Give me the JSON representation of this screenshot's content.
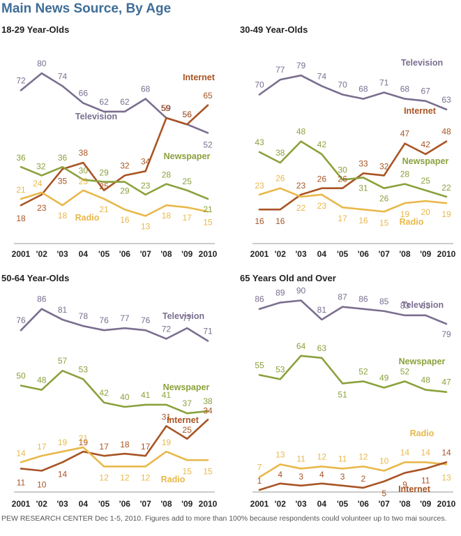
{
  "title": "Main News Source, By Age",
  "source_note": "PEW RESEARCH CENTER Dec 1-5, 2010. Figures add to more than 100% because respondents could volunteer up to two mai sources.",
  "colors": {
    "Television": "#7a6e8f",
    "Internet": "#a85424",
    "Newspaper": "#8aa13c",
    "Radio": "#e8b84a",
    "title": "#3f6d96"
  },
  "chart_data": [
    {
      "type": "line",
      "title": "18-29 Year-Olds",
      "x": [
        "2001",
        "'02",
        "'03",
        "04",
        "'05",
        "'06",
        "'07",
        "'08",
        "'09",
        "2010"
      ],
      "ylim": [
        0,
        100
      ],
      "series": [
        {
          "name": "Television",
          "values": [
            72,
            80,
            74,
            66,
            62,
            62,
            68,
            59,
            56,
            52
          ]
        },
        {
          "name": "Internet",
          "values": [
            18,
            23,
            35,
            38,
            25,
            32,
            34,
            59,
            56,
            65
          ]
        },
        {
          "name": "Newspaper",
          "values": [
            36,
            32,
            36,
            30,
            29,
            29,
            23,
            28,
            25,
            21
          ]
        },
        {
          "name": "Radio",
          "values": [
            21,
            24,
            18,
            25,
            21,
            16,
            13,
            18,
            17,
            15
          ]
        }
      ]
    },
    {
      "type": "line",
      "title": "30-49 Year-Olds",
      "x": [
        "2001",
        "'02",
        "'03",
        "04",
        "'05",
        "'06",
        "'07",
        "'08",
        "'09",
        "2010"
      ],
      "ylim": [
        0,
        100
      ],
      "series": [
        {
          "name": "Television",
          "values": [
            70,
            77,
            79,
            74,
            70,
            68,
            71,
            68,
            67,
            63
          ]
        },
        {
          "name": "Internet",
          "values": [
            16,
            16,
            23,
            26,
            26,
            33,
            32,
            47,
            42,
            48
          ]
        },
        {
          "name": "Newspaper",
          "values": [
            43,
            38,
            48,
            42,
            30,
            31,
            26,
            28,
            25,
            22
          ]
        },
        {
          "name": "Radio",
          "values": [
            23,
            26,
            22,
            23,
            17,
            16,
            15,
            19,
            20,
            19
          ]
        }
      ]
    },
    {
      "type": "line",
      "title": "50-64 Year-Olds",
      "x": [
        "2001",
        "'02",
        "'03",
        "04",
        "'05",
        "'06",
        "'07",
        "'08",
        "'09",
        "2010"
      ],
      "ylim": [
        0,
        100
      ],
      "series": [
        {
          "name": "Television",
          "values": [
            76,
            86,
            81,
            78,
            76,
            77,
            76,
            72,
            77,
            71
          ]
        },
        {
          "name": "Internet",
          "values": [
            11,
            10,
            14,
            19,
            17,
            18,
            17,
            31,
            25,
            34
          ]
        },
        {
          "name": "Newspaper",
          "values": [
            50,
            48,
            57,
            53,
            42,
            40,
            41,
            41,
            37,
            38
          ]
        },
        {
          "name": "Radio",
          "values": [
            14,
            17,
            19,
            21,
            12,
            12,
            12,
            19,
            15,
            15
          ]
        }
      ]
    },
    {
      "type": "line",
      "title": "65 Years Old and Over",
      "x": [
        "2001",
        "'02",
        "'03",
        "04",
        "'05",
        "'06",
        "'07",
        "'08",
        "'09",
        "2010"
      ],
      "ylim": [
        0,
        100
      ],
      "series": [
        {
          "name": "Television",
          "values": [
            86,
            89,
            90,
            81,
            87,
            86,
            85,
            83,
            83,
            79
          ]
        },
        {
          "name": "Newspaper",
          "values": [
            55,
            53,
            64,
            63,
            51,
            52,
            49,
            52,
            48,
            47
          ]
        },
        {
          "name": "Radio",
          "values": [
            7,
            13,
            11,
            12,
            11,
            12,
            10,
            14,
            14,
            13
          ]
        },
        {
          "name": "Internet",
          "values": [
            1,
            4,
            3,
            4,
            3,
            2,
            5,
            9,
            11,
            14
          ]
        }
      ]
    }
  ]
}
